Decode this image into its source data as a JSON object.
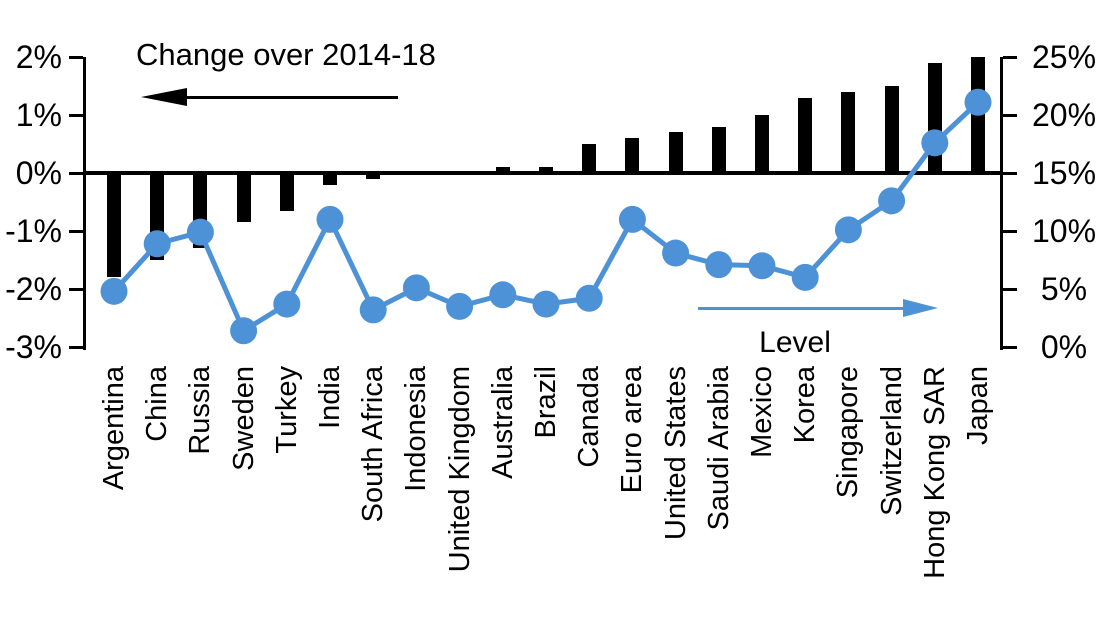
{
  "chart_data": {
    "type": "bar",
    "subtype": "combo-bar-line-dual-axis",
    "title": "",
    "categories": [
      "Argentina",
      "China",
      "Russia",
      "Sweden",
      "Turkey",
      "India",
      "South Africa",
      "Indonesia",
      "United Kingdom",
      "Australia",
      "Brazil",
      "Canada",
      "Euro area",
      "United States",
      "Saudi Arabia",
      "Mexico",
      "Korea",
      "Singapore",
      "Switzerland",
      "Hong Kong SAR",
      "Japan"
    ],
    "series": [
      {
        "name": "Change over 2014-18",
        "type": "bar",
        "axis": "left",
        "unit": "%",
        "values": [
          -1.8,
          -1.5,
          -1.3,
          -0.85,
          -0.65,
          -0.2,
          -0.1,
          0,
          0,
          0.1,
          0.1,
          0.5,
          0.6,
          0.7,
          0.8,
          1.0,
          1.3,
          1.4,
          1.5,
          1.9,
          2.0
        ]
      },
      {
        "name": "Level",
        "type": "line",
        "axis": "right",
        "unit": "%",
        "values": [
          4.8,
          8.9,
          9.9,
          1.4,
          3.7,
          11.0,
          3.2,
          5.1,
          3.5,
          4.5,
          3.7,
          4.2,
          11.0,
          8.1,
          7.1,
          7.0,
          6.0,
          10.1,
          12.6,
          17.6,
          21.1
        ]
      }
    ],
    "left_axis": {
      "tick_labels": [
        "2%",
        "1%",
        "0%",
        "-1%",
        "-2%",
        "-3%"
      ],
      "min": -3,
      "max": 2
    },
    "right_axis": {
      "tick_labels": [
        "25%",
        "20%",
        "15%",
        "10%",
        "5%",
        "0%"
      ],
      "min": 0,
      "max": 25
    },
    "legend_position": "none",
    "grid": false
  },
  "colors": {
    "bar": "#000000",
    "line": "#4D92D6",
    "text": "#000000",
    "background": "#FFFFFF"
  }
}
